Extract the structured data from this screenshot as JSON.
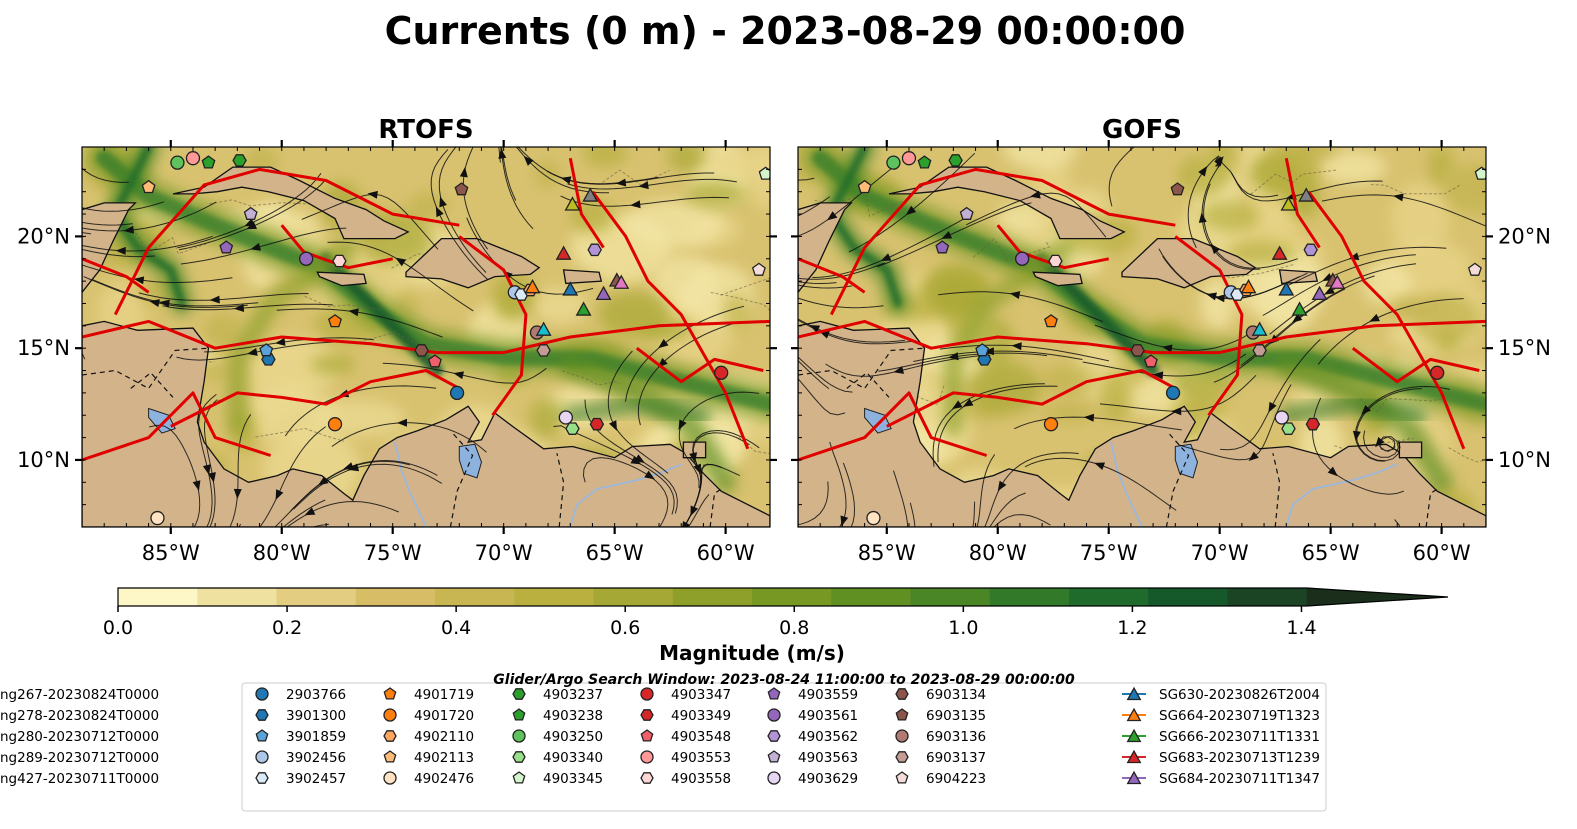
{
  "chart_data": {
    "type": "map",
    "title": "Currents (0 m) - 2023-08-29 00:00:00",
    "panels": [
      {
        "title": "RTOFS",
        "left_axis": true
      },
      {
        "title": "GOFS",
        "left_axis": false
      }
    ],
    "lon_range": [
      -89,
      -58
    ],
    "lat_range": [
      7,
      24
    ],
    "lon_ticks": [
      {
        "value": -85,
        "label": "85°W"
      },
      {
        "value": -80,
        "label": "80°W"
      },
      {
        "value": -75,
        "label": "75°W"
      },
      {
        "value": -70,
        "label": "70°W"
      },
      {
        "value": -65,
        "label": "65°W"
      },
      {
        "value": -60,
        "label": "60°W"
      }
    ],
    "lat_ticks": [
      {
        "value": 20,
        "label": "20°N"
      },
      {
        "value": 15,
        "label": "15°N"
      },
      {
        "value": 10,
        "label": "10°N"
      }
    ],
    "colorbar": {
      "label": "Magnitude (m/s)",
      "min": 0,
      "max": 1.5,
      "extend": "max",
      "ticks": [
        {
          "value": 0,
          "label": "0.0"
        },
        {
          "value": 0.2,
          "label": "0.2"
        },
        {
          "value": 0.4,
          "label": "0.4"
        },
        {
          "value": 0.6,
          "label": "0.6"
        },
        {
          "value": 0.8,
          "label": "0.8"
        },
        {
          "value": 1.0,
          "label": "1.0"
        },
        {
          "value": 1.2,
          "label": "1.2"
        },
        {
          "value": 1.4,
          "label": "1.4"
        }
      ],
      "colors": [
        "#fdf6c6",
        "#efe1a0",
        "#e3cd80",
        "#d6bd66",
        "#c8b653",
        "#b9b03f",
        "#a5a834",
        "#8fa02a",
        "#789824",
        "#608f22",
        "#4a8526",
        "#327a2a",
        "#1e6b2c",
        "#15582a",
        "#1a4424",
        "#1b2e1c"
      ]
    },
    "legend_title": "Glider/Argo Search Window: 2023-08-24 11:00:00 to 2023-08-29 00:00:00",
    "legend_entries": [
      {
        "label": "2903766",
        "color": "#1f77b4",
        "marker": "circle"
      },
      {
        "label": "3901300",
        "color": "#1f77b4",
        "marker": "hexagon"
      },
      {
        "label": "3901859",
        "color": "#5aa3d8",
        "marker": "pentagon"
      },
      {
        "label": "3902456",
        "color": "#aec7e8",
        "marker": "circle"
      },
      {
        "label": "3902457",
        "color": "#dbeaf7",
        "marker": "hexagon"
      },
      {
        "label": "4901719",
        "color": "#ff7f0e",
        "marker": "pentagon"
      },
      {
        "label": "4901720",
        "color": "#ff7f0e",
        "marker": "circle"
      },
      {
        "label": "4902110",
        "color": "#ffa55c",
        "marker": "hexagon"
      },
      {
        "label": "4902113",
        "color": "#ffbb78",
        "marker": "pentagon"
      },
      {
        "label": "4902476",
        "color": "#ffe3c2",
        "marker": "circle"
      },
      {
        "label": "4903237",
        "color": "#2ca02c",
        "marker": "hexagon"
      },
      {
        "label": "4903238",
        "color": "#2ca02c",
        "marker": "pentagon"
      },
      {
        "label": "4903250",
        "color": "#5ec25e",
        "marker": "circle"
      },
      {
        "label": "4903340",
        "color": "#98df8a",
        "marker": "hexagon"
      },
      {
        "label": "4903345",
        "color": "#d4f5cc",
        "marker": "pentagon"
      },
      {
        "label": "4903347",
        "color": "#d62728",
        "marker": "circle"
      },
      {
        "label": "4903349",
        "color": "#d62728",
        "marker": "hexagon"
      },
      {
        "label": "4903548",
        "color": "#f0606a",
        "marker": "pentagon"
      },
      {
        "label": "4903553",
        "color": "#ff9896",
        "marker": "circle"
      },
      {
        "label": "4903558",
        "color": "#ffd6d6",
        "marker": "hexagon"
      },
      {
        "label": "4903559",
        "color": "#9467bd",
        "marker": "pentagon"
      },
      {
        "label": "4903561",
        "color": "#9467bd",
        "marker": "circle"
      },
      {
        "label": "4903562",
        "color": "#b294d6",
        "marker": "hexagon"
      },
      {
        "label": "4903563",
        "color": "#c5b0d5",
        "marker": "pentagon"
      },
      {
        "label": "4903629",
        "color": "#e6d6f2",
        "marker": "circle"
      },
      {
        "label": "6903134",
        "color": "#8c564b",
        "marker": "hexagon"
      },
      {
        "label": "6903135",
        "color": "#8c564b",
        "marker": "pentagon"
      },
      {
        "label": "6903136",
        "color": "#b07a70",
        "marker": "circle"
      },
      {
        "label": "6903137",
        "color": "#c49c94",
        "marker": "hexagon"
      },
      {
        "label": "6904223",
        "color": "#f4ddd8",
        "marker": "pentagon"
      },
      {
        "label": "SG630-20230826T2004",
        "color": "#1f77b4",
        "marker": "triangle"
      },
      {
        "label": "SG664-20230719T1323",
        "color": "#ff7f0e",
        "marker": "triangle"
      },
      {
        "label": "SG666-20230711T1331",
        "color": "#2ca02c",
        "marker": "triangle"
      },
      {
        "label": "SG683-20230713T1239",
        "color": "#d62728",
        "marker": "triangle"
      },
      {
        "label": "SG684-20230711T1347",
        "color": "#9467bd",
        "marker": "triangle"
      },
      {
        "label": "ng267-20230824T0000",
        "color": "#8c564b",
        "marker": "triangle"
      },
      {
        "label": "ng278-20230824T0000",
        "color": "#e377c2",
        "marker": "triangle"
      },
      {
        "label": "ng280-20230712T0000",
        "color": "#7f7f7f",
        "marker": "triangle"
      },
      {
        "label": "ng289-20230712T0000",
        "color": "#bcbd22",
        "marker": "triangle"
      },
      {
        "label": "ng427-20230711T0000",
        "color": "#17becf",
        "marker": "triangle"
      }
    ],
    "positions": [
      {
        "id": "2903766",
        "lon": -72.1,
        "lat": 13.0
      },
      {
        "id": "3901300",
        "lon": -80.6,
        "lat": 14.5
      },
      {
        "id": "3901859",
        "lon": -80.7,
        "lat": 14.9
      },
      {
        "id": "3902456",
        "lon": -69.5,
        "lat": 17.5
      },
      {
        "id": "3902457",
        "lon": -69.2,
        "lat": 17.4
      },
      {
        "id": "4901719",
        "lon": -77.6,
        "lat": 16.2
      },
      {
        "id": "4901720",
        "lon": -77.6,
        "lat": 11.6
      },
      {
        "id": "4902110",
        "lon": -68.8,
        "lat": 17.6
      },
      {
        "id": "4902113",
        "lon": -86.0,
        "lat": 22.2
      },
      {
        "id": "4902476",
        "lon": -85.6,
        "lat": 7.4
      },
      {
        "id": "4903237",
        "lon": -81.9,
        "lat": 23.4
      },
      {
        "id": "4903238",
        "lon": -83.3,
        "lat": 23.3
      },
      {
        "id": "4903250",
        "lon": -84.7,
        "lat": 23.3
      },
      {
        "id": "4903340",
        "lon": -66.9,
        "lat": 11.4
      },
      {
        "id": "4903345",
        "lon": -58.2,
        "lat": 22.8
      },
      {
        "id": "4903347",
        "lon": -60.2,
        "lat": 13.9
      },
      {
        "id": "4903349",
        "lon": -65.8,
        "lat": 11.6
      },
      {
        "id": "4903548",
        "lon": -73.1,
        "lat": 14.4
      },
      {
        "id": "4903553",
        "lon": -84.0,
        "lat": 23.5
      },
      {
        "id": "4903558",
        "lon": -77.4,
        "lat": 18.9
      },
      {
        "id": "4903559",
        "lon": -82.5,
        "lat": 19.5
      },
      {
        "id": "4903561",
        "lon": -78.9,
        "lat": 19.0
      },
      {
        "id": "4903562",
        "lon": -65.9,
        "lat": 19.4
      },
      {
        "id": "4903563",
        "lon": -81.4,
        "lat": 21.0
      },
      {
        "id": "4903629",
        "lon": -67.2,
        "lat": 11.9
      },
      {
        "id": "6903134",
        "lon": -73.7,
        "lat": 14.9
      },
      {
        "id": "6903135",
        "lon": -71.9,
        "lat": 22.1
      },
      {
        "id": "6903136",
        "lon": -68.5,
        "lat": 15.7
      },
      {
        "id": "6903137",
        "lon": -68.2,
        "lat": 14.9
      },
      {
        "id": "6904223",
        "lon": -58.5,
        "lat": 18.5
      },
      {
        "id": "SG630-20230826T2004",
        "lon": -67.0,
        "lat": 17.6
      },
      {
        "id": "SG664-20230719T1323",
        "lon": -68.7,
        "lat": 17.7
      },
      {
        "id": "SG666-20230711T1331",
        "lon": -66.4,
        "lat": 16.7
      },
      {
        "id": "SG683-20230713T1239",
        "lon": -67.3,
        "lat": 19.2
      },
      {
        "id": "SG684-20230711T1347",
        "lon": -65.5,
        "lat": 17.4
      },
      {
        "id": "ng267-20230824T0000",
        "lon": -64.9,
        "lat": 18.0
      },
      {
        "id": "ng278-20230824T0000",
        "lon": -64.7,
        "lat": 17.9
      },
      {
        "id": "ng280-20230712T0000",
        "lon": -66.1,
        "lat": 21.8
      },
      {
        "id": "ng289-20230712T0000",
        "lon": -66.9,
        "lat": 21.4
      },
      {
        "id": "ng427-20230711T0000",
        "lon": -68.2,
        "lat": 15.8
      }
    ]
  }
}
